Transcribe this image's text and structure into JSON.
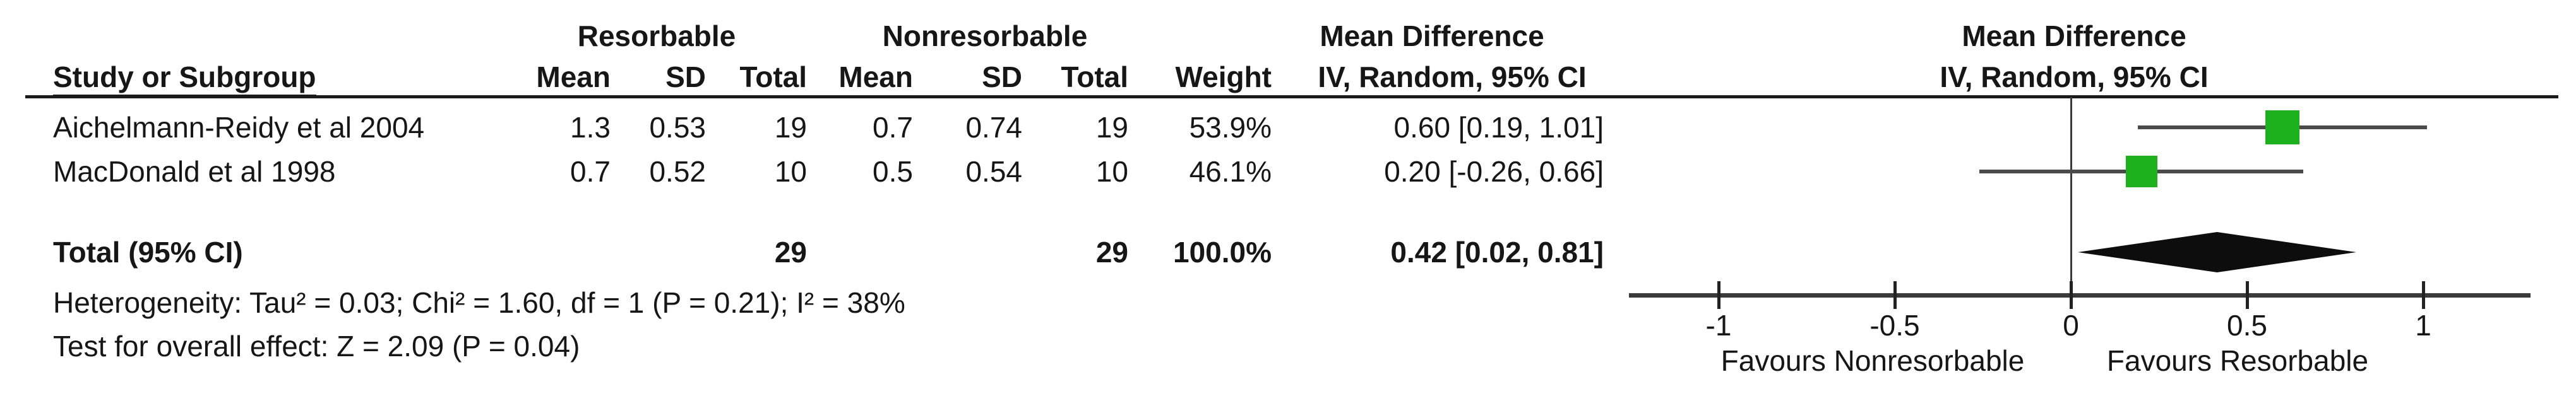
{
  "table": {
    "group_headers": {
      "resorbable": "Resorbable",
      "nonresorbable": "Nonresorbable",
      "mean_difference_text": "Mean Difference",
      "mean_difference_plot": "Mean Difference"
    },
    "col_headers": {
      "study": "Study or Subgroup",
      "mean": "Mean",
      "sd": "SD",
      "total": "Total",
      "weight": "Weight",
      "ci_text": "IV, Random, 95% CI",
      "ci_plot": "IV, Random, 95% CI"
    },
    "rows": [
      {
        "study": "Aichelmann-Reidy et al 2004",
        "mean1": "1.3",
        "sd1": "0.53",
        "total1": "19",
        "mean2": "0.7",
        "sd2": "0.74",
        "total2": "19",
        "weight": "53.9%",
        "ci": "0.60 [0.19, 1.01]"
      },
      {
        "study": "MacDonald et al 1998",
        "mean1": "0.7",
        "sd1": "0.52",
        "total1": "10",
        "mean2": "0.5",
        "sd2": "0.54",
        "total2": "10",
        "weight": "46.1%",
        "ci": "0.20 [-0.26, 0.66]"
      }
    ],
    "total_row": {
      "label": "Total (95% CI)",
      "total1": "29",
      "total2": "29",
      "weight": "100.0%",
      "ci": "0.42 [0.02, 0.81]"
    },
    "heterogeneity": "Heterogeneity: Tau² = 0.03; Chi² = 1.60, df = 1 (P = 0.21); I² = 38%",
    "overall_effect": "Test for overall effect: Z = 2.09 (P = 0.04)"
  },
  "chart_data": {
    "type": "forest",
    "effect_measure": "Mean Difference",
    "model": "IV, Random, 95% CI",
    "studies": [
      {
        "name": "Aichelmann-Reidy et al 2004",
        "md": 0.6,
        "ci_low": 0.19,
        "ci_high": 1.01,
        "weight_pct": 53.9
      },
      {
        "name": "MacDonald et al 1998",
        "md": 0.2,
        "ci_low": -0.26,
        "ci_high": 0.66,
        "weight_pct": 46.1
      }
    ],
    "total": {
      "label": "Total (95% CI)",
      "md": 0.42,
      "ci_low": 0.02,
      "ci_high": 0.81,
      "weight_pct": 100.0
    },
    "axis": {
      "min": -1,
      "max": 1,
      "ticks": [
        -1,
        -0.5,
        0,
        0.5,
        1
      ]
    },
    "favours_left": "Favours Nonresorbable",
    "favours_right": "Favours Resorbable",
    "colors": {
      "marker_green": "#1db21d",
      "diamond_black": "#0d0d0d",
      "ci_line": "#4a4a4a",
      "axis_line": "#3a3a3a"
    }
  }
}
